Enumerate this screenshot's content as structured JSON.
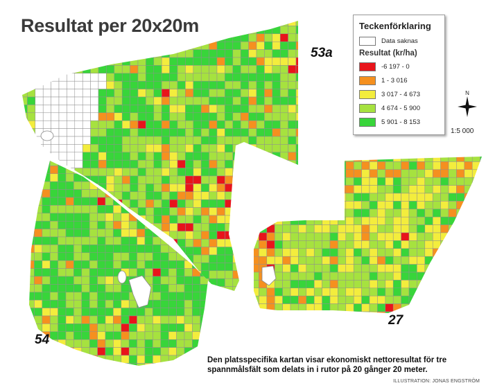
{
  "title": "Resultat per 20x20m",
  "fields": [
    {
      "name": "53a"
    },
    {
      "name": "54"
    },
    {
      "name": "27"
    }
  ],
  "legend": {
    "title": "Teckenförklaring",
    "missing_label": "Data saknas",
    "result_title": "Resultat (kr/ha)",
    "classes": [
      {
        "label": "-6 197 - 0",
        "color": "#e8141b"
      },
      {
        "label": "1 - 3 016",
        "color": "#f5901f"
      },
      {
        "label": "3 017 - 4 673",
        "color": "#f3ed3d"
      },
      {
        "label": "4 674 - 5 900",
        "color": "#a6e23f"
      },
      {
        "label": "5 901 - 8 153",
        "color": "#38d53a"
      }
    ],
    "missing_color": "#ffffff"
  },
  "compass_letter": "N",
  "scale": "1:5 000",
  "caption": "Den platsspecifika kartan visar ekonomiskt nettoresultat för tre spannmålsfält som delats in i rutor på 20 gånger 20 meter.",
  "credit": "ILLUSTRATION: JONAS ENGSTRÖM"
}
